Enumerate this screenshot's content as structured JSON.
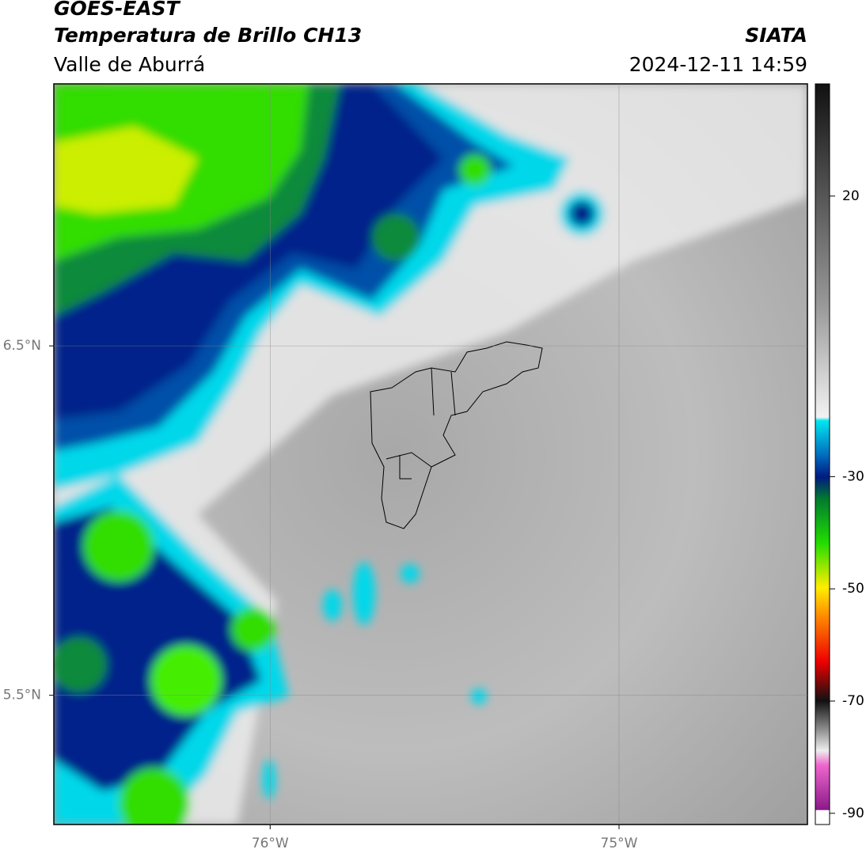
{
  "header": {
    "title": "GOES-EAST",
    "subtitle": "Temperatura de Brillo CH13",
    "region": "Valle de Aburrá",
    "source": "SIATA",
    "datetime": "2024-12-11 14:59"
  },
  "map": {
    "xlim": [
      -76.62,
      -74.46
    ],
    "ylim": [
      5.13,
      7.25
    ],
    "xticks": [
      {
        "value": -76,
        "label": "76°W"
      },
      {
        "value": -75,
        "label": "75°W"
      }
    ],
    "yticks": [
      {
        "value": 6.5,
        "label": "6.5°N"
      },
      {
        "value": 5.5,
        "label": "5.5°N"
      }
    ]
  },
  "colorbar": {
    "clim": [
      -92,
      40
    ],
    "ticks": [
      20,
      -30,
      -50,
      -70,
      -90
    ]
  }
}
